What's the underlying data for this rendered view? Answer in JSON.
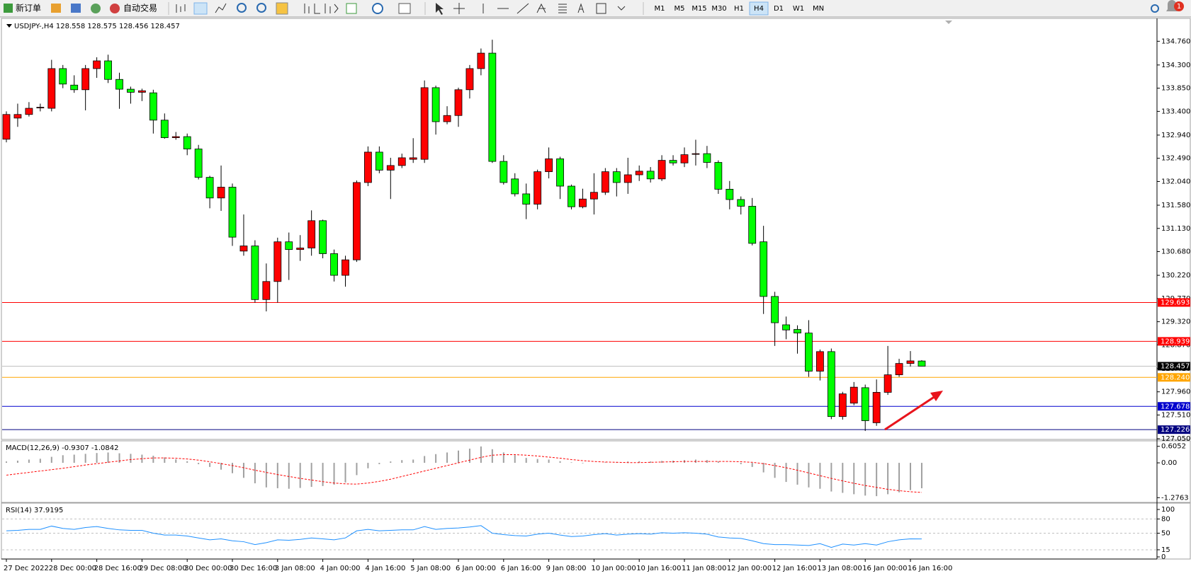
{
  "toolbar": {
    "new_order": "新订单",
    "auto_trading": "自动交易",
    "timeframes": [
      "M1",
      "M5",
      "M15",
      "M30",
      "H1",
      "H4",
      "D1",
      "W1",
      "MN"
    ],
    "active": "H4",
    "notification": "1"
  },
  "chart_data": [
    {
      "type": "candlestick",
      "title": "USDJPY-,H4  128.558 128.575 128.456 128.457",
      "categories": [
        "27 Dec 2022",
        null,
        null,
        null,
        "28 Dec 00:00",
        null,
        null,
        null,
        "28 Dec 16:00",
        null,
        null,
        null,
        "29 Dec 08:00",
        null,
        null,
        null,
        "30 Dec 00:00",
        null,
        null,
        null,
        "30 Dec 16:00",
        null,
        null,
        null,
        "3 Jan 08:00",
        null,
        null,
        null,
        "4 Jan 00:00",
        null,
        null,
        null,
        "4 Jan 16:00",
        null,
        null,
        null,
        "5 Jan 08:00",
        null,
        null,
        null,
        "6 Jan 00:00",
        null,
        null,
        null,
        "6 Jan 16:00",
        null,
        null,
        null,
        "9 Jan 08:00",
        null,
        null,
        null,
        "10 Jan 00:00",
        null,
        null,
        null,
        "10 Jan 16:00",
        null,
        null,
        null,
        "11 Jan 08:00",
        null,
        null,
        null,
        "12 Jan 00:00",
        null,
        null,
        null,
        "12 Jan 16:00",
        null,
        null,
        null,
        "13 Jan 08:00",
        null,
        null,
        null,
        "16 Jan 00:00",
        null,
        null,
        null,
        "16 Jan 16:00",
        null
      ],
      "open": [
        132.86,
        133.27,
        133.34,
        133.47,
        133.46,
        134.23,
        133.91,
        133.82,
        134.23,
        134.38,
        134.02,
        133.83,
        133.77,
        133.76,
        133.23,
        132.89,
        132.91,
        132.67,
        132.12,
        131.72,
        131.93,
        130.69,
        130.79,
        129.75,
        130.1,
        130.87,
        130.72,
        130.75,
        131.28,
        130.64,
        130.22,
        130.52,
        132.02,
        132.61,
        132.26,
        132.35,
        132.47,
        132.47,
        133.86,
        133.2,
        133.32,
        133.82,
        134.23,
        134.53,
        132.43,
        132.09,
        131.8,
        131.6,
        132.23,
        132.48,
        131.95,
        131.55,
        131.7,
        131.83,
        132.23,
        132.02,
        132.17,
        132.24,
        132.09,
        132.45,
        132.4,
        132.57,
        132.58,
        132.41,
        131.89,
        131.69,
        131.56,
        130.87,
        129.81,
        129.26,
        129.17,
        129.1,
        128.36,
        128.74,
        127.48,
        127.74,
        128.04,
        127.36,
        127.95,
        128.29,
        128.51,
        128.558
      ],
      "high": [
        133.4,
        133.55,
        133.58,
        133.55,
        134.4,
        134.3,
        134.1,
        134.3,
        134.45,
        134.5,
        134.15,
        133.88,
        133.84,
        133.82,
        133.36,
        133.0,
        132.97,
        132.75,
        132.15,
        132.35,
        132.0,
        131.4,
        130.9,
        130.45,
        130.95,
        131.05,
        131.0,
        131.48,
        131.3,
        130.72,
        130.6,
        132.06,
        132.72,
        132.72,
        132.5,
        132.58,
        132.88,
        134.0,
        133.9,
        133.5,
        133.86,
        134.3,
        134.62,
        134.79,
        132.55,
        132.2,
        132.0,
        132.27,
        132.7,
        132.52,
        131.98,
        131.9,
        132.2,
        132.3,
        132.3,
        132.5,
        132.35,
        132.32,
        132.55,
        132.55,
        132.7,
        132.85,
        132.73,
        132.45,
        132.05,
        131.75,
        131.72,
        131.18,
        129.9,
        129.42,
        129.25,
        129.35,
        128.78,
        128.8,
        127.96,
        128.15,
        128.1,
        128.2,
        128.85,
        128.6,
        128.75,
        128.575
      ],
      "low": [
        132.8,
        133.1,
        133.3,
        133.4,
        133.4,
        133.85,
        133.76,
        133.42,
        134.05,
        133.95,
        133.45,
        133.55,
        133.6,
        132.97,
        132.87,
        132.85,
        132.55,
        132.08,
        131.52,
        131.47,
        130.79,
        130.6,
        129.69,
        129.52,
        129.69,
        130.13,
        130.5,
        130.6,
        130.55,
        130.1,
        130.0,
        130.48,
        131.95,
        132.2,
        131.7,
        132.3,
        132.4,
        132.4,
        132.95,
        133.15,
        133.1,
        133.65,
        134.1,
        132.4,
        131.98,
        131.75,
        131.31,
        131.5,
        132.1,
        131.7,
        131.5,
        131.52,
        131.4,
        131.78,
        131.75,
        131.8,
        132.05,
        132.02,
        132.05,
        132.35,
        132.32,
        132.35,
        132.3,
        131.8,
        131.5,
        131.4,
        130.8,
        129.47,
        128.85,
        128.98,
        128.7,
        128.25,
        128.18,
        127.43,
        127.42,
        127.7,
        127.2,
        127.3,
        127.9,
        128.25,
        128.45,
        128.456
      ],
      "close": [
        133.34,
        133.34,
        133.46,
        133.48,
        134.23,
        133.93,
        133.82,
        134.23,
        134.38,
        134.02,
        133.83,
        133.77,
        133.8,
        133.23,
        132.89,
        132.91,
        132.67,
        132.12,
        131.72,
        131.93,
        130.96,
        130.79,
        129.75,
        130.1,
        130.87,
        130.72,
        130.75,
        131.28,
        130.64,
        130.22,
        130.52,
        132.02,
        132.61,
        132.26,
        132.35,
        132.5,
        132.5,
        133.86,
        133.2,
        133.32,
        133.82,
        134.23,
        134.53,
        132.43,
        132.02,
        131.8,
        131.6,
        132.23,
        132.48,
        131.95,
        131.55,
        131.7,
        131.83,
        132.23,
        132.02,
        132.17,
        132.24,
        132.09,
        132.45,
        132.4,
        132.56,
        132.58,
        132.41,
        131.89,
        131.69,
        131.56,
        130.84,
        129.81,
        129.3,
        129.16,
        129.1,
        128.36,
        128.74,
        127.48,
        127.92,
        128.05,
        127.4,
        127.95,
        128.29,
        128.51,
        128.56,
        128.457
      ],
      "up_color": "#ff0000",
      "down_color": "#00ff00",
      "ylim": [
        127.05,
        135.19
      ],
      "yticks": [
        {
          "value": 134.76,
          "label": "134.760"
        },
        {
          "value": 134.3,
          "label": "134.300"
        },
        {
          "value": 133.85,
          "label": "133.850"
        },
        {
          "value": 133.4,
          "label": "133.400"
        },
        {
          "value": 132.94,
          "label": "132.940"
        },
        {
          "value": 132.49,
          "label": "132.490"
        },
        {
          "value": 132.04,
          "label": "132.040"
        },
        {
          "value": 131.58,
          "label": "131.580"
        },
        {
          "value": 131.13,
          "label": "131.130"
        },
        {
          "value": 130.68,
          "label": "130.680"
        },
        {
          "value": 130.22,
          "label": "130.220"
        },
        {
          "value": 129.77,
          "label": "129.770"
        },
        {
          "value": 129.32,
          "label": "129.320"
        },
        {
          "value": 128.87,
          "label": "128.870"
        },
        {
          "value": 128.41,
          "label": "128.410"
        },
        {
          "value": 127.96,
          "label": "127.960"
        },
        {
          "value": 127.51,
          "label": "127.510"
        },
        {
          "value": 127.05,
          "label": "127.050"
        }
      ],
      "levels": [
        {
          "value": 129.693,
          "label": "129.693",
          "color": "#ff0000"
        },
        {
          "value": 128.939,
          "label": "128.939",
          "color": "#ff0000"
        },
        {
          "value": 128.457,
          "label": "128.457",
          "color": "#c0c0c0",
          "badge": "#000000"
        },
        {
          "value": 128.24,
          "label": "128.240",
          "color": "#ffa500"
        },
        {
          "value": 127.678,
          "label": "127.678",
          "color": "#0000cd"
        },
        {
          "value": 127.226,
          "label": "127.226",
          "color": "#000080"
        }
      ]
    },
    {
      "type": "macd",
      "title": "MACD(12,26,9) -0.9307 -1.0842",
      "values": [
        0.05,
        0.08,
        0.12,
        0.15,
        0.22,
        0.28,
        0.3,
        0.33,
        0.36,
        0.38,
        0.35,
        0.33,
        0.3,
        0.26,
        0.2,
        0.13,
        0.06,
        -0.05,
        -0.15,
        -0.25,
        -0.38,
        -0.55,
        -0.75,
        -0.9,
        -0.93,
        -0.95,
        -0.92,
        -0.88,
        -0.85,
        -0.8,
        -0.72,
        -0.45,
        -0.2,
        -0.05,
        0.05,
        0.1,
        0.12,
        0.25,
        0.32,
        0.38,
        0.45,
        0.52,
        0.6,
        0.5,
        0.38,
        0.28,
        0.18,
        0.14,
        0.12,
        0.06,
        0.02,
        -0.02,
        0.0,
        0.02,
        0.03,
        0.05,
        0.06,
        0.05,
        0.07,
        0.08,
        0.1,
        0.12,
        0.1,
        0.05,
        0.0,
        -0.05,
        -0.15,
        -0.35,
        -0.55,
        -0.7,
        -0.8,
        -0.9,
        -0.95,
        -1.05,
        -1.1,
        -1.15,
        -1.2,
        -1.22,
        -1.15,
        -1.08,
        -1.0,
        -0.9307
      ],
      "color": "#a0a0a0",
      "signal": {
        "color": "#ff0000",
        "values": [
          -0.45,
          -0.4,
          -0.35,
          -0.3,
          -0.25,
          -0.2,
          -0.14,
          -0.08,
          -0.03,
          0.02,
          0.07,
          0.12,
          0.15,
          0.18,
          0.18,
          0.17,
          0.14,
          0.1,
          0.04,
          -0.03,
          -0.1,
          -0.18,
          -0.27,
          -0.35,
          -0.43,
          -0.5,
          -0.57,
          -0.63,
          -0.69,
          -0.74,
          -0.77,
          -0.78,
          -0.74,
          -0.68,
          -0.6,
          -0.5,
          -0.4,
          -0.3,
          -0.2,
          -0.1,
          0.0,
          0.1,
          0.2,
          0.28,
          0.3,
          0.3,
          0.28,
          0.25,
          0.21,
          0.17,
          0.12,
          0.08,
          0.05,
          0.03,
          0.02,
          0.01,
          0.01,
          0.02,
          0.03,
          0.04,
          0.05,
          0.05,
          0.05,
          0.05,
          0.05,
          0.04,
          0.02,
          -0.03,
          -0.1,
          -0.18,
          -0.27,
          -0.37,
          -0.47,
          -0.57,
          -0.66,
          -0.75,
          -0.83,
          -0.9,
          -0.97,
          -1.02,
          -1.06,
          -1.0842
        ]
      },
      "ylim": [
        -1.45,
        0.78
      ],
      "yticks": [
        0.6052,
        {
          "value": 0,
          "label": "0.00"
        },
        -1.2763
      ]
    },
    {
      "type": "line",
      "title": "RSI(14) 37.9195",
      "values": [
        55,
        56,
        58,
        58,
        65,
        60,
        58,
        62,
        64,
        60,
        57,
        56,
        56,
        50,
        46,
        46,
        44,
        40,
        36,
        38,
        34,
        32,
        26,
        30,
        36,
        35,
        37,
        40,
        38,
        36,
        40,
        55,
        58,
        55,
        56,
        57,
        57,
        64,
        58,
        60,
        61,
        63,
        66,
        50,
        47,
        45,
        44,
        48,
        50,
        46,
        43,
        44,
        47,
        49,
        46,
        48,
        49,
        48,
        51,
        50,
        51,
        50,
        48,
        42,
        40,
        39,
        34,
        28,
        26,
        26,
        25,
        24,
        28,
        20,
        27,
        25,
        28,
        25,
        32,
        36,
        38,
        37.9195
      ],
      "color": "#1e90ff",
      "ylim": [
        0,
        100
      ],
      "yticks": [
        100,
        80,
        50,
        15,
        0
      ]
    }
  ]
}
